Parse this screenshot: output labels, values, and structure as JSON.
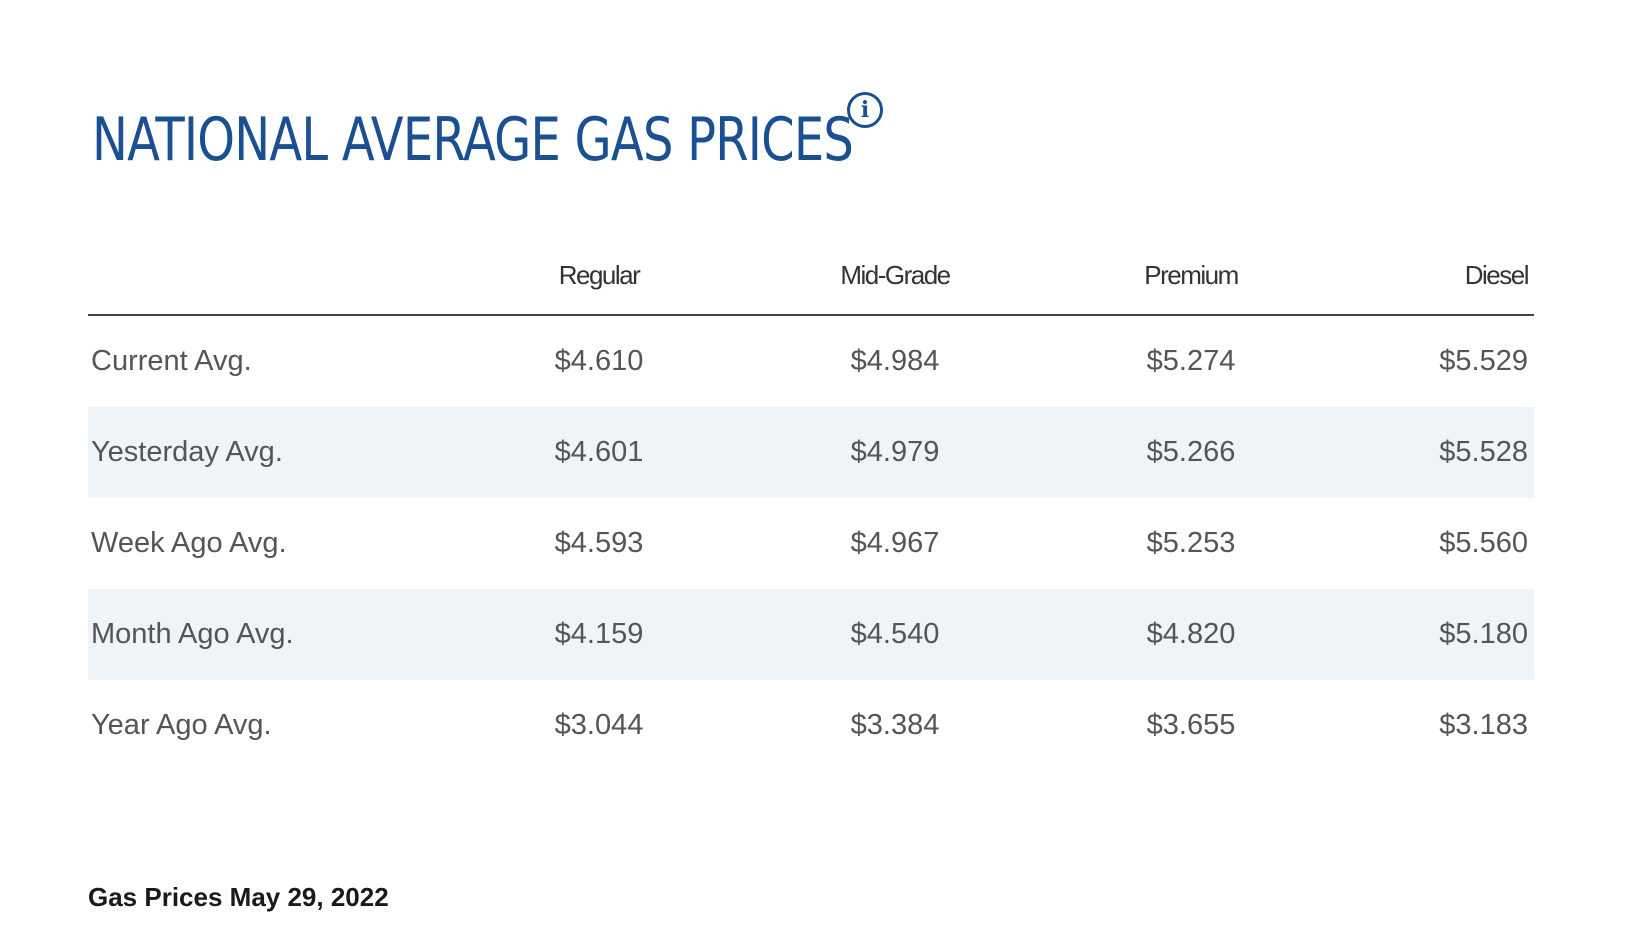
{
  "title": "NATIONAL AVERAGE GAS PRICES",
  "info_icon": "info-icon",
  "table": {
    "columns": [
      "",
      "Regular",
      "Mid-Grade",
      "Premium",
      "Diesel"
    ],
    "rows": [
      {
        "label": "Current Avg.",
        "values": [
          "$4.610",
          "$4.984",
          "$5.274",
          "$5.529"
        ]
      },
      {
        "label": "Yesterday Avg.",
        "values": [
          "$4.601",
          "$4.979",
          "$5.266",
          "$5.528"
        ]
      },
      {
        "label": "Week Ago Avg.",
        "values": [
          "$4.593",
          "$4.967",
          "$5.253",
          "$5.560"
        ]
      },
      {
        "label": "Month Ago Avg.",
        "values": [
          "$4.159",
          "$4.540",
          "$4.820",
          "$5.180"
        ]
      },
      {
        "label": "Year Ago Avg.",
        "values": [
          "$3.044",
          "$3.384",
          "$3.655",
          "$3.183"
        ]
      }
    ]
  },
  "caption": "Gas Prices May 29, 2022",
  "colors": {
    "title": "#1a4f91",
    "row_shade": "#eff4f8",
    "header_rule": "#444444"
  }
}
